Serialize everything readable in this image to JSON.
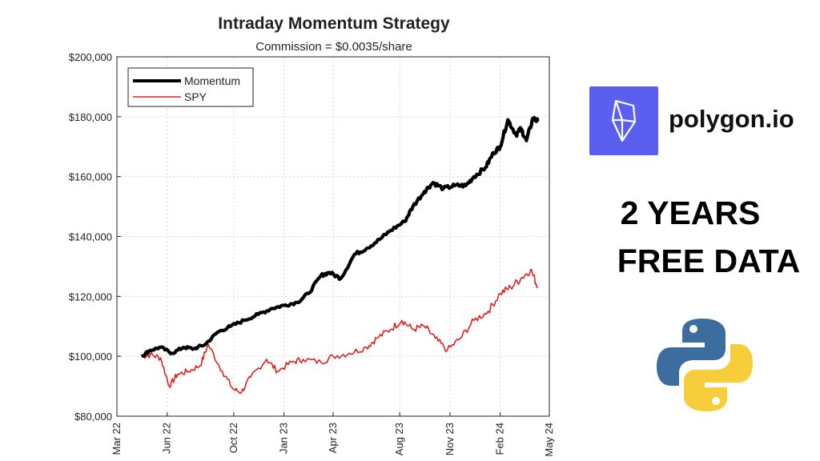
{
  "chart_data": {
    "type": "line",
    "title": "Intraday Momentum Strategy",
    "subtitle": "Commission = $0.0035/share",
    "xlabel": "",
    "ylabel": "",
    "x_ticks": [
      "Mar 22",
      "Jun 22",
      "Oct 22",
      "Jan 23",
      "Apr 23",
      "Aug 23",
      "Nov 23",
      "Feb 24",
      "May 24"
    ],
    "y_ticks": [
      "$80,000",
      "$100,000",
      "$120,000",
      "$140,000",
      "$160,000",
      "$180,000",
      "$200,000"
    ],
    "ylim": [
      80000,
      200000
    ],
    "grid": true,
    "legend_position": "top-left",
    "series": [
      {
        "name": "Momentum",
        "color": "#000000",
        "x": [
          "2022-04-15",
          "2022-05-01",
          "2022-05-20",
          "2022-06-10",
          "2022-07-01",
          "2022-07-20",
          "2022-08-10",
          "2022-09-01",
          "2022-09-25",
          "2022-10-20",
          "2022-11-15",
          "2022-12-10",
          "2023-01-01",
          "2023-01-25",
          "2023-02-15",
          "2023-03-10",
          "2023-03-25",
          "2023-04-15",
          "2023-05-10",
          "2023-06-01",
          "2023-06-25",
          "2023-07-15",
          "2023-08-10",
          "2023-08-25",
          "2023-09-15",
          "2023-10-01",
          "2023-10-20",
          "2023-11-10",
          "2023-11-30",
          "2023-12-15",
          "2024-01-05",
          "2024-01-20",
          "2024-02-01",
          "2024-02-15",
          "2024-03-01",
          "2024-03-10",
          "2024-03-20",
          "2024-04-01",
          "2024-04-10"
        ],
        "values": [
          100000,
          102000,
          103000,
          101000,
          103000,
          102500,
          104000,
          108000,
          110000,
          112000,
          114000,
          116000,
          117000,
          118000,
          121000,
          127000,
          128000,
          126000,
          134000,
          136000,
          139000,
          142000,
          145000,
          150000,
          155000,
          158000,
          156000,
          157000,
          157000,
          160000,
          163000,
          168000,
          170000,
          179000,
          174000,
          176000,
          172000,
          179500,
          178500
        ]
      },
      {
        "name": "SPY",
        "color": "#e02020",
        "x": [
          "2022-04-15",
          "2022-05-01",
          "2022-05-20",
          "2022-06-05",
          "2022-06-20",
          "2022-07-10",
          "2022-08-01",
          "2022-08-15",
          "2022-09-10",
          "2022-09-30",
          "2022-10-15",
          "2022-11-01",
          "2022-11-30",
          "2022-12-20",
          "2023-01-15",
          "2023-02-05",
          "2023-03-10",
          "2023-04-01",
          "2023-05-01",
          "2023-06-01",
          "2023-06-20",
          "2023-07-15",
          "2023-08-05",
          "2023-08-25",
          "2023-09-15",
          "2023-10-05",
          "2023-10-27",
          "2023-11-20",
          "2023-12-15",
          "2024-01-10",
          "2024-02-01",
          "2024-02-20",
          "2024-03-10",
          "2024-03-28",
          "2024-04-10"
        ],
        "values": [
          100000,
          100500,
          99500,
          90000,
          94000,
          95000,
          97000,
          104000,
          95000,
          89000,
          88000,
          93000,
          99000,
          95000,
          98000,
          99000,
          98000,
          100000,
          101000,
          103000,
          106000,
          109000,
          112000,
          109000,
          110000,
          106000,
          102000,
          106000,
          112000,
          115000,
          121000,
          123000,
          126000,
          129000,
          123000
        ]
      }
    ]
  },
  "promo": {
    "brand_name": "polygon.io",
    "headline_line1": "2 YEARS",
    "headline_line2": "FREE DATA",
    "logo_color": "#5b5ff0",
    "python_blue": "#3c6d9e",
    "python_yellow": "#f7cd3b"
  }
}
